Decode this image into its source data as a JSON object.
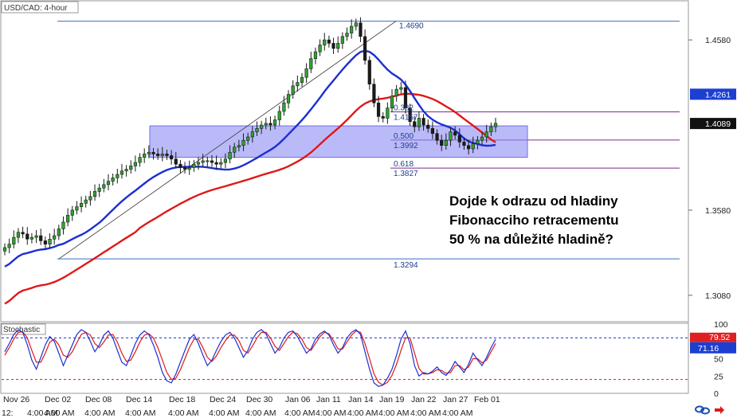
{
  "chart_data": {
    "type": "candlestick",
    "title": "USD/CAD: 4-hour",
    "price_axis": {
      "min": 1.2925,
      "max": 1.4805,
      "ticks": [
        "1.4580",
        "1.3580",
        "1.3080"
      ],
      "tick_values": [
        1.458,
        1.358,
        1.308
      ]
    },
    "price_badges": [
      {
        "name": "ma-blue",
        "text": "1.4261",
        "value": 1.4261,
        "color": "#1c3fd1"
      },
      {
        "name": "last-price",
        "text": "1.4089",
        "value": 1.4089,
        "color": "#111111"
      }
    ],
    "date_labels": [
      "Nov 26",
      "Dec 02",
      "Dec 08",
      "Dec 14",
      "Dec 18",
      "Dec 24",
      "Dec 30",
      "Jan 06",
      "Jan 11",
      "Jan 14",
      "Jan 19",
      "Jan 22",
      "Jan 27",
      "Feb 01"
    ],
    "time_labels": [
      "12:",
      "4:00 AM",
      "4:00 AM",
      "4:00 AM",
      "4:00 AM",
      "4:00 AM",
      "4:00 AM",
      "4:00 AM",
      "4:00 AM",
      "4:00 AM",
      "4:00 AM",
      "4:00 AM",
      "4:00 AM",
      "4:00 AM"
    ],
    "fibonacci": {
      "swing_low": "1.3294",
      "swing_high": "1.4690",
      "swing_low_value": 1.3294,
      "swing_high_value": 1.469,
      "levels": [
        {
          "ratio": "0.382",
          "price": "1.4157",
          "value": 1.4157
        },
        {
          "ratio": "0.500",
          "price": "1.3992",
          "value": 1.3992
        },
        {
          "ratio": "0.618",
          "price": "1.3827",
          "value": 1.3827
        }
      ]
    },
    "zone": {
      "top": 1.4075,
      "bottom": 1.389
    },
    "annotation": [
      "Dojde k odrazu od hladiny",
      "Fibonacciho retracementu",
      "50 % na důležité hladině?"
    ],
    "series": {
      "close": [
        1.336,
        1.338,
        1.342,
        1.345,
        1.344,
        1.341,
        1.342,
        1.343,
        1.34,
        1.338,
        1.341,
        1.343,
        1.347,
        1.351,
        1.355,
        1.358,
        1.36,
        1.362,
        1.364,
        1.366,
        1.369,
        1.371,
        1.373,
        1.375,
        1.377,
        1.379,
        1.381,
        1.382,
        1.384,
        1.386,
        1.389,
        1.391,
        1.392,
        1.391,
        1.39,
        1.391,
        1.39,
        1.388,
        1.385,
        1.383,
        1.382,
        1.383,
        1.385,
        1.386,
        1.387,
        1.387,
        1.386,
        1.385,
        1.386,
        1.388,
        1.392,
        1.395,
        1.396,
        1.399,
        1.401,
        1.404,
        1.406,
        1.408,
        1.409,
        1.408,
        1.411,
        1.416,
        1.421,
        1.426,
        1.431,
        1.433,
        1.436,
        1.441,
        1.447,
        1.451,
        1.455,
        1.458,
        1.456,
        1.453,
        1.456,
        1.46,
        1.462,
        1.466,
        1.468,
        1.46,
        1.446,
        1.432,
        1.421,
        1.413,
        1.412,
        1.418,
        1.425,
        1.429,
        1.43,
        1.418,
        1.41,
        1.407,
        1.412,
        1.408,
        1.406,
        1.403,
        1.399,
        1.396,
        1.399,
        1.404,
        1.402,
        1.398,
        1.396,
        1.394,
        1.397,
        1.399,
        1.401,
        1.404,
        1.407,
        1.409
      ],
      "ma_red_labels": [],
      "ma_blue_labels": []
    },
    "stochastic": {
      "label": "Stochastic",
      "range": [
        0,
        100
      ],
      "ticks": [
        "100",
        "50",
        "25",
        "0"
      ],
      "tick_values": [
        100,
        50,
        25,
        0
      ],
      "overbought": 80,
      "oversold": 20,
      "badges": [
        {
          "text": "79.52",
          "value": 79.52,
          "color": "#e02020"
        },
        {
          "text": "71.16",
          "value": 71.16,
          "color": "#1c3fd1"
        }
      ],
      "k": [
        60,
        72,
        85,
        92,
        88,
        70,
        48,
        35,
        52,
        70,
        82,
        75,
        58,
        40,
        55,
        70,
        85,
        92,
        88,
        75,
        60,
        70,
        84,
        90,
        80,
        62,
        45,
        40,
        55,
        72,
        84,
        90,
        85,
        70,
        52,
        30,
        18,
        15,
        28,
        45,
        62,
        78,
        85,
        72,
        55,
        40,
        48,
        62,
        75,
        84,
        88,
        80,
        66,
        52,
        62,
        78,
        88,
        92,
        86,
        72,
        58,
        66,
        80,
        88,
        90,
        82,
        70,
        58,
        64,
        78,
        86,
        90,
        84,
        70,
        58,
        66,
        80,
        88,
        92,
        85,
        60,
        35,
        15,
        10,
        12,
        22,
        35,
        55,
        78,
        90,
        72,
        40,
        25,
        30,
        28,
        32,
        38,
        30,
        26,
        34,
        46,
        38,
        30,
        42,
        58,
        48,
        40,
        52,
        66,
        78
      ],
      "d": [
        55,
        66,
        78,
        88,
        89,
        80,
        62,
        45,
        45,
        58,
        74,
        78,
        70,
        55,
        52,
        60,
        73,
        85,
        88,
        84,
        72,
        66,
        74,
        84,
        85,
        74,
        58,
        46,
        48,
        60,
        74,
        84,
        86,
        80,
        66,
        48,
        30,
        20,
        22,
        34,
        50,
        66,
        78,
        78,
        66,
        52,
        46,
        54,
        66,
        76,
        84,
        84,
        76,
        62,
        58,
        68,
        80,
        88,
        88,
        80,
        68,
        62,
        72,
        82,
        88,
        86,
        78,
        66,
        62,
        72,
        82,
        88,
        86,
        76,
        64,
        64,
        74,
        84,
        90,
        88,
        72,
        50,
        28,
        16,
        12,
        16,
        26,
        42,
        62,
        80,
        80,
        58,
        36,
        28,
        28,
        30,
        34,
        33,
        29,
        30,
        40,
        40,
        34,
        38,
        50,
        50,
        44,
        48,
        60,
        72
      ]
    }
  },
  "footer": {
    "link_icon": "chain-link-icon",
    "arrow_icon": "red-arrow-icon"
  }
}
